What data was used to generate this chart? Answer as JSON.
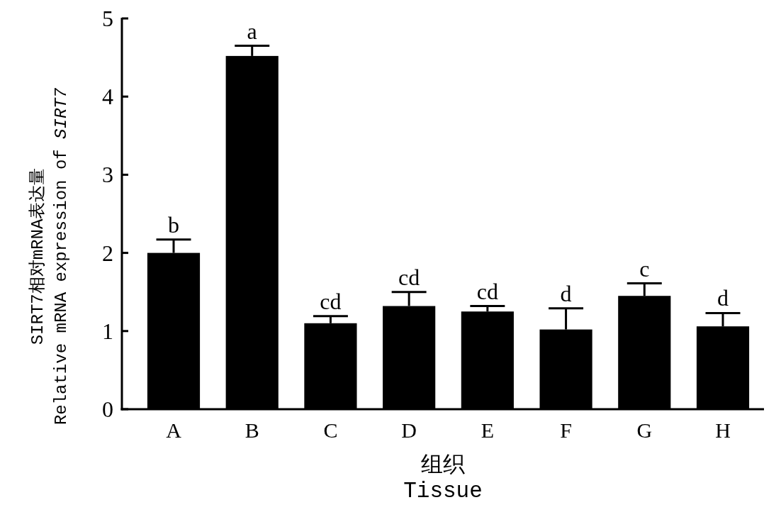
{
  "chart_data": {
    "type": "bar",
    "categories": [
      "A",
      "B",
      "C",
      "D",
      "E",
      "F",
      "G",
      "H"
    ],
    "values": [
      2.0,
      4.52,
      1.1,
      1.32,
      1.25,
      1.02,
      1.45,
      1.06
    ],
    "errors": [
      0.17,
      0.13,
      0.09,
      0.18,
      0.07,
      0.27,
      0.16,
      0.17
    ],
    "color": "#000000",
    "ylim": [
      0,
      5
    ],
    "yticks": [
      0,
      1,
      2,
      3,
      4,
      5
    ],
    "xlabel": "组织\nTissue",
    "ylabel": "SIRT7相对mRNA表达量\nRelative mRNA expression of *SIRT7*",
    "annotations": [
      {
        "text": "b",
        "x": "A",
        "y": 2.17
      },
      {
        "text": "a",
        "x": "B",
        "y": 4.65
      },
      {
        "text": "cd",
        "x": "C",
        "y": 1.19
      },
      {
        "text": "cd",
        "x": "D",
        "y": 1.5
      },
      {
        "text": "cd",
        "x": "E",
        "y": 1.32
      },
      {
        "text": "d",
        "x": "F",
        "y": 1.29
      },
      {
        "text": "c",
        "x": "G",
        "y": 1.61
      },
      {
        "text": "d",
        "x": "H",
        "y": 1.23
      }
    ],
    "grid": false
  }
}
